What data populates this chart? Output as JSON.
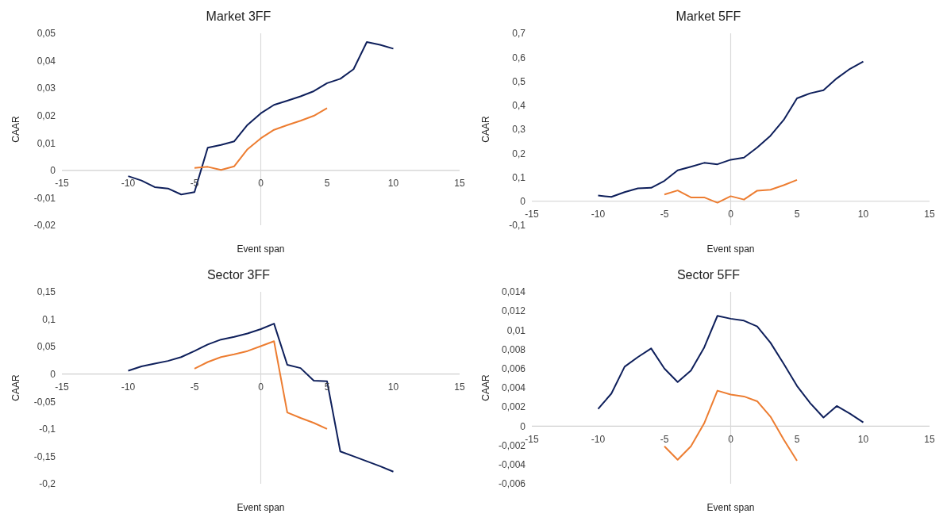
{
  "chart_data": [
    {
      "type": "line",
      "ref_lines": [
        {
          "axis": "x",
          "value": 0,
          "color": "#d9d9d9"
        }
      ],
      "title": "Market 3FF",
      "xlabel": "Event span",
      "ylabel": "CAAR",
      "xlim": [
        -15,
        15
      ],
      "xticks": [
        -15,
        -10,
        -5,
        0,
        5,
        10,
        15
      ],
      "ylim": [
        -0.02,
        0.05
      ],
      "yticks": [
        {
          "value": -0.02,
          "label": "-0,02"
        },
        {
          "value": -0.01,
          "label": "-0,01"
        },
        {
          "value": 0,
          "label": "0"
        },
        {
          "value": 0.01,
          "label": "0,01"
        },
        {
          "value": 0.02,
          "label": "0,02"
        },
        {
          "value": 0.03,
          "label": "0,03"
        },
        {
          "value": 0.04,
          "label": "0,04"
        },
        {
          "value": 0.05,
          "label": "0,05"
        }
      ],
      "grid": false,
      "legend": false,
      "marker": "none",
      "line_style": "solid",
      "series": [
        {
          "color": "#0e1f5b",
          "x": [
            -10,
            -9,
            -8,
            -7,
            -6,
            -5,
            -4,
            -3,
            -2,
            -1,
            0,
            1,
            2,
            3,
            4,
            5,
            6,
            7,
            8,
            9,
            10
          ],
          "values": [
            -0.0021,
            -0.0037,
            -0.0061,
            -0.0066,
            -0.0088,
            -0.0079,
            0.0083,
            0.0093,
            0.0106,
            0.0166,
            0.0208,
            0.0239,
            0.0254,
            0.027,
            0.0289,
            0.0318,
            0.0334,
            0.0369,
            0.0468,
            0.0458,
            0.0444
          ]
        },
        {
          "color": "#ed7d31",
          "x": [
            -5,
            -4,
            -3,
            -2,
            -1,
            0,
            1,
            2,
            3,
            4,
            5
          ],
          "values": [
            0.0009,
            0.0013,
            0.0002,
            0.0015,
            0.0077,
            0.0117,
            0.0148,
            0.0165,
            0.0181,
            0.0199,
            0.0227
          ]
        }
      ]
    },
    {
      "type": "line",
      "ref_lines": [
        {
          "axis": "x",
          "value": 0,
          "color": "#d9d9d9"
        }
      ],
      "title": "Market 5FF",
      "xlabel": "Event span",
      "ylabel": "CAAR",
      "xlim": [
        -15,
        15
      ],
      "xticks": [
        -15,
        -10,
        -5,
        0,
        5,
        10,
        15
      ],
      "ylim": [
        -0.1,
        0.7
      ],
      "yticks": [
        {
          "value": -0.1,
          "label": "-0,1"
        },
        {
          "value": 0,
          "label": "0"
        },
        {
          "value": 0.1,
          "label": "0,1"
        },
        {
          "value": 0.2,
          "label": "0,2"
        },
        {
          "value": 0.3,
          "label": "0,3"
        },
        {
          "value": 0.4,
          "label": "0,4"
        },
        {
          "value": 0.5,
          "label": "0,5"
        },
        {
          "value": 0.6,
          "label": "0,6"
        },
        {
          "value": 0.7,
          "label": "0,7"
        }
      ],
      "grid": false,
      "legend": false,
      "marker": "none",
      "line_style": "solid",
      "series": [
        {
          "color": "#0e1f5b",
          "x": [
            -10,
            -9,
            -8,
            -7,
            -6,
            -5,
            -4,
            -3,
            -2,
            -1,
            0,
            1,
            2,
            3,
            4,
            5,
            6,
            7,
            8,
            9,
            10
          ],
          "values": [
            0.024,
            0.018,
            0.038,
            0.054,
            0.056,
            0.085,
            0.129,
            0.144,
            0.16,
            0.154,
            0.173,
            0.182,
            0.224,
            0.273,
            0.339,
            0.429,
            0.45,
            0.463,
            0.512,
            0.552,
            0.582
          ]
        },
        {
          "color": "#ed7d31",
          "x": [
            -5,
            -4,
            -3,
            -2,
            -1,
            0,
            1,
            2,
            3,
            4,
            5
          ],
          "values": [
            0.028,
            0.045,
            0.016,
            0.016,
            -0.006,
            0.021,
            0.007,
            0.044,
            0.048,
            0.067,
            0.089
          ]
        }
      ]
    },
    {
      "type": "line",
      "ref_lines": [
        {
          "axis": "x",
          "value": 0,
          "color": "#d9d9d9"
        }
      ],
      "title": "Sector 3FF",
      "xlabel": "Event span",
      "ylabel": "CAAR",
      "xlim": [
        -15,
        15
      ],
      "xticks": [
        -15,
        -10,
        -5,
        0,
        5,
        10,
        15
      ],
      "ylim": [
        -0.2,
        0.15
      ],
      "yticks": [
        {
          "value": -0.2,
          "label": "-0,2"
        },
        {
          "value": -0.15,
          "label": "-0,15"
        },
        {
          "value": -0.1,
          "label": "-0,1"
        },
        {
          "value": -0.05,
          "label": "-0,05"
        },
        {
          "value": 0,
          "label": "0"
        },
        {
          "value": 0.05,
          "label": "0,05"
        },
        {
          "value": 0.1,
          "label": "0,1"
        },
        {
          "value": 0.15,
          "label": "0,15"
        }
      ],
      "grid": false,
      "legend": false,
      "marker": "none",
      "line_style": "solid",
      "series": [
        {
          "color": "#0e1f5b",
          "x": [
            -10,
            -9,
            -8,
            -7,
            -6,
            -5,
            -4,
            -3,
            -2,
            -1,
            0,
            1,
            2,
            3,
            4,
            5,
            6,
            7,
            8,
            9,
            10
          ],
          "values": [
            0.006,
            0.014,
            0.019,
            0.024,
            0.031,
            0.042,
            0.054,
            0.063,
            0.068,
            0.074,
            0.082,
            0.092,
            0.017,
            0.011,
            -0.012,
            -0.013,
            -0.141,
            -0.15,
            -0.159,
            -0.168,
            -0.178
          ]
        },
        {
          "color": "#ed7d31",
          "x": [
            -5,
            -4,
            -3,
            -2,
            -1,
            0,
            1,
            2,
            3,
            4,
            5
          ],
          "values": [
            0.01,
            0.022,
            0.031,
            0.036,
            0.042,
            0.051,
            0.06,
            -0.07,
            -0.08,
            -0.089,
            -0.1
          ]
        }
      ]
    },
    {
      "type": "line",
      "ref_lines": [
        {
          "axis": "x",
          "value": 0,
          "color": "#d9d9d9"
        }
      ],
      "title": "Sector 5FF",
      "xlabel": "Event span",
      "ylabel": "CAAR",
      "xlim": [
        -15,
        15
      ],
      "xticks": [
        -15,
        -10,
        -5,
        0,
        5,
        10,
        15
      ],
      "ylim": [
        -0.006,
        0.014
      ],
      "yticks": [
        {
          "value": -0.006,
          "label": "-0,006"
        },
        {
          "value": -0.004,
          "label": "-0,004"
        },
        {
          "value": -0.002,
          "label": "-0,002"
        },
        {
          "value": 0,
          "label": "0"
        },
        {
          "value": 0.002,
          "label": "0,002"
        },
        {
          "value": 0.004,
          "label": "0,004"
        },
        {
          "value": 0.006,
          "label": "0,006"
        },
        {
          "value": 0.008,
          "label": "0,008"
        },
        {
          "value": 0.01,
          "label": "0,01"
        },
        {
          "value": 0.012,
          "label": "0,012"
        },
        {
          "value": 0.014,
          "label": "0,014"
        }
      ],
      "grid": false,
      "legend": false,
      "marker": "none",
      "line_style": "solid",
      "series": [
        {
          "color": "#0e1f5b",
          "x": [
            -10,
            -9,
            -8,
            -7,
            -6,
            -5,
            -4,
            -3,
            -2,
            -1,
            0,
            1,
            2,
            3,
            4,
            5,
            6,
            7,
            8,
            9,
            10
          ],
          "values": [
            0.0018,
            0.0034,
            0.0062,
            0.0072,
            0.0081,
            0.006,
            0.0046,
            0.0058,
            0.0082,
            0.0115,
            0.0112,
            0.011,
            0.0104,
            0.0087,
            0.0065,
            0.0042,
            0.0024,
            0.0009,
            0.0021,
            0.0013,
            0.0004
          ]
        },
        {
          "color": "#ed7d31",
          "x": [
            -5,
            -4,
            -3,
            -2,
            -1,
            0,
            1,
            2,
            3,
            4,
            5
          ],
          "values": [
            -0.0021,
            -0.0035,
            -0.0021,
            0.0003,
            0.0037,
            0.0033,
            0.0031,
            0.0026,
            0.001,
            -0.0014,
            -0.0036
          ]
        }
      ]
    }
  ]
}
